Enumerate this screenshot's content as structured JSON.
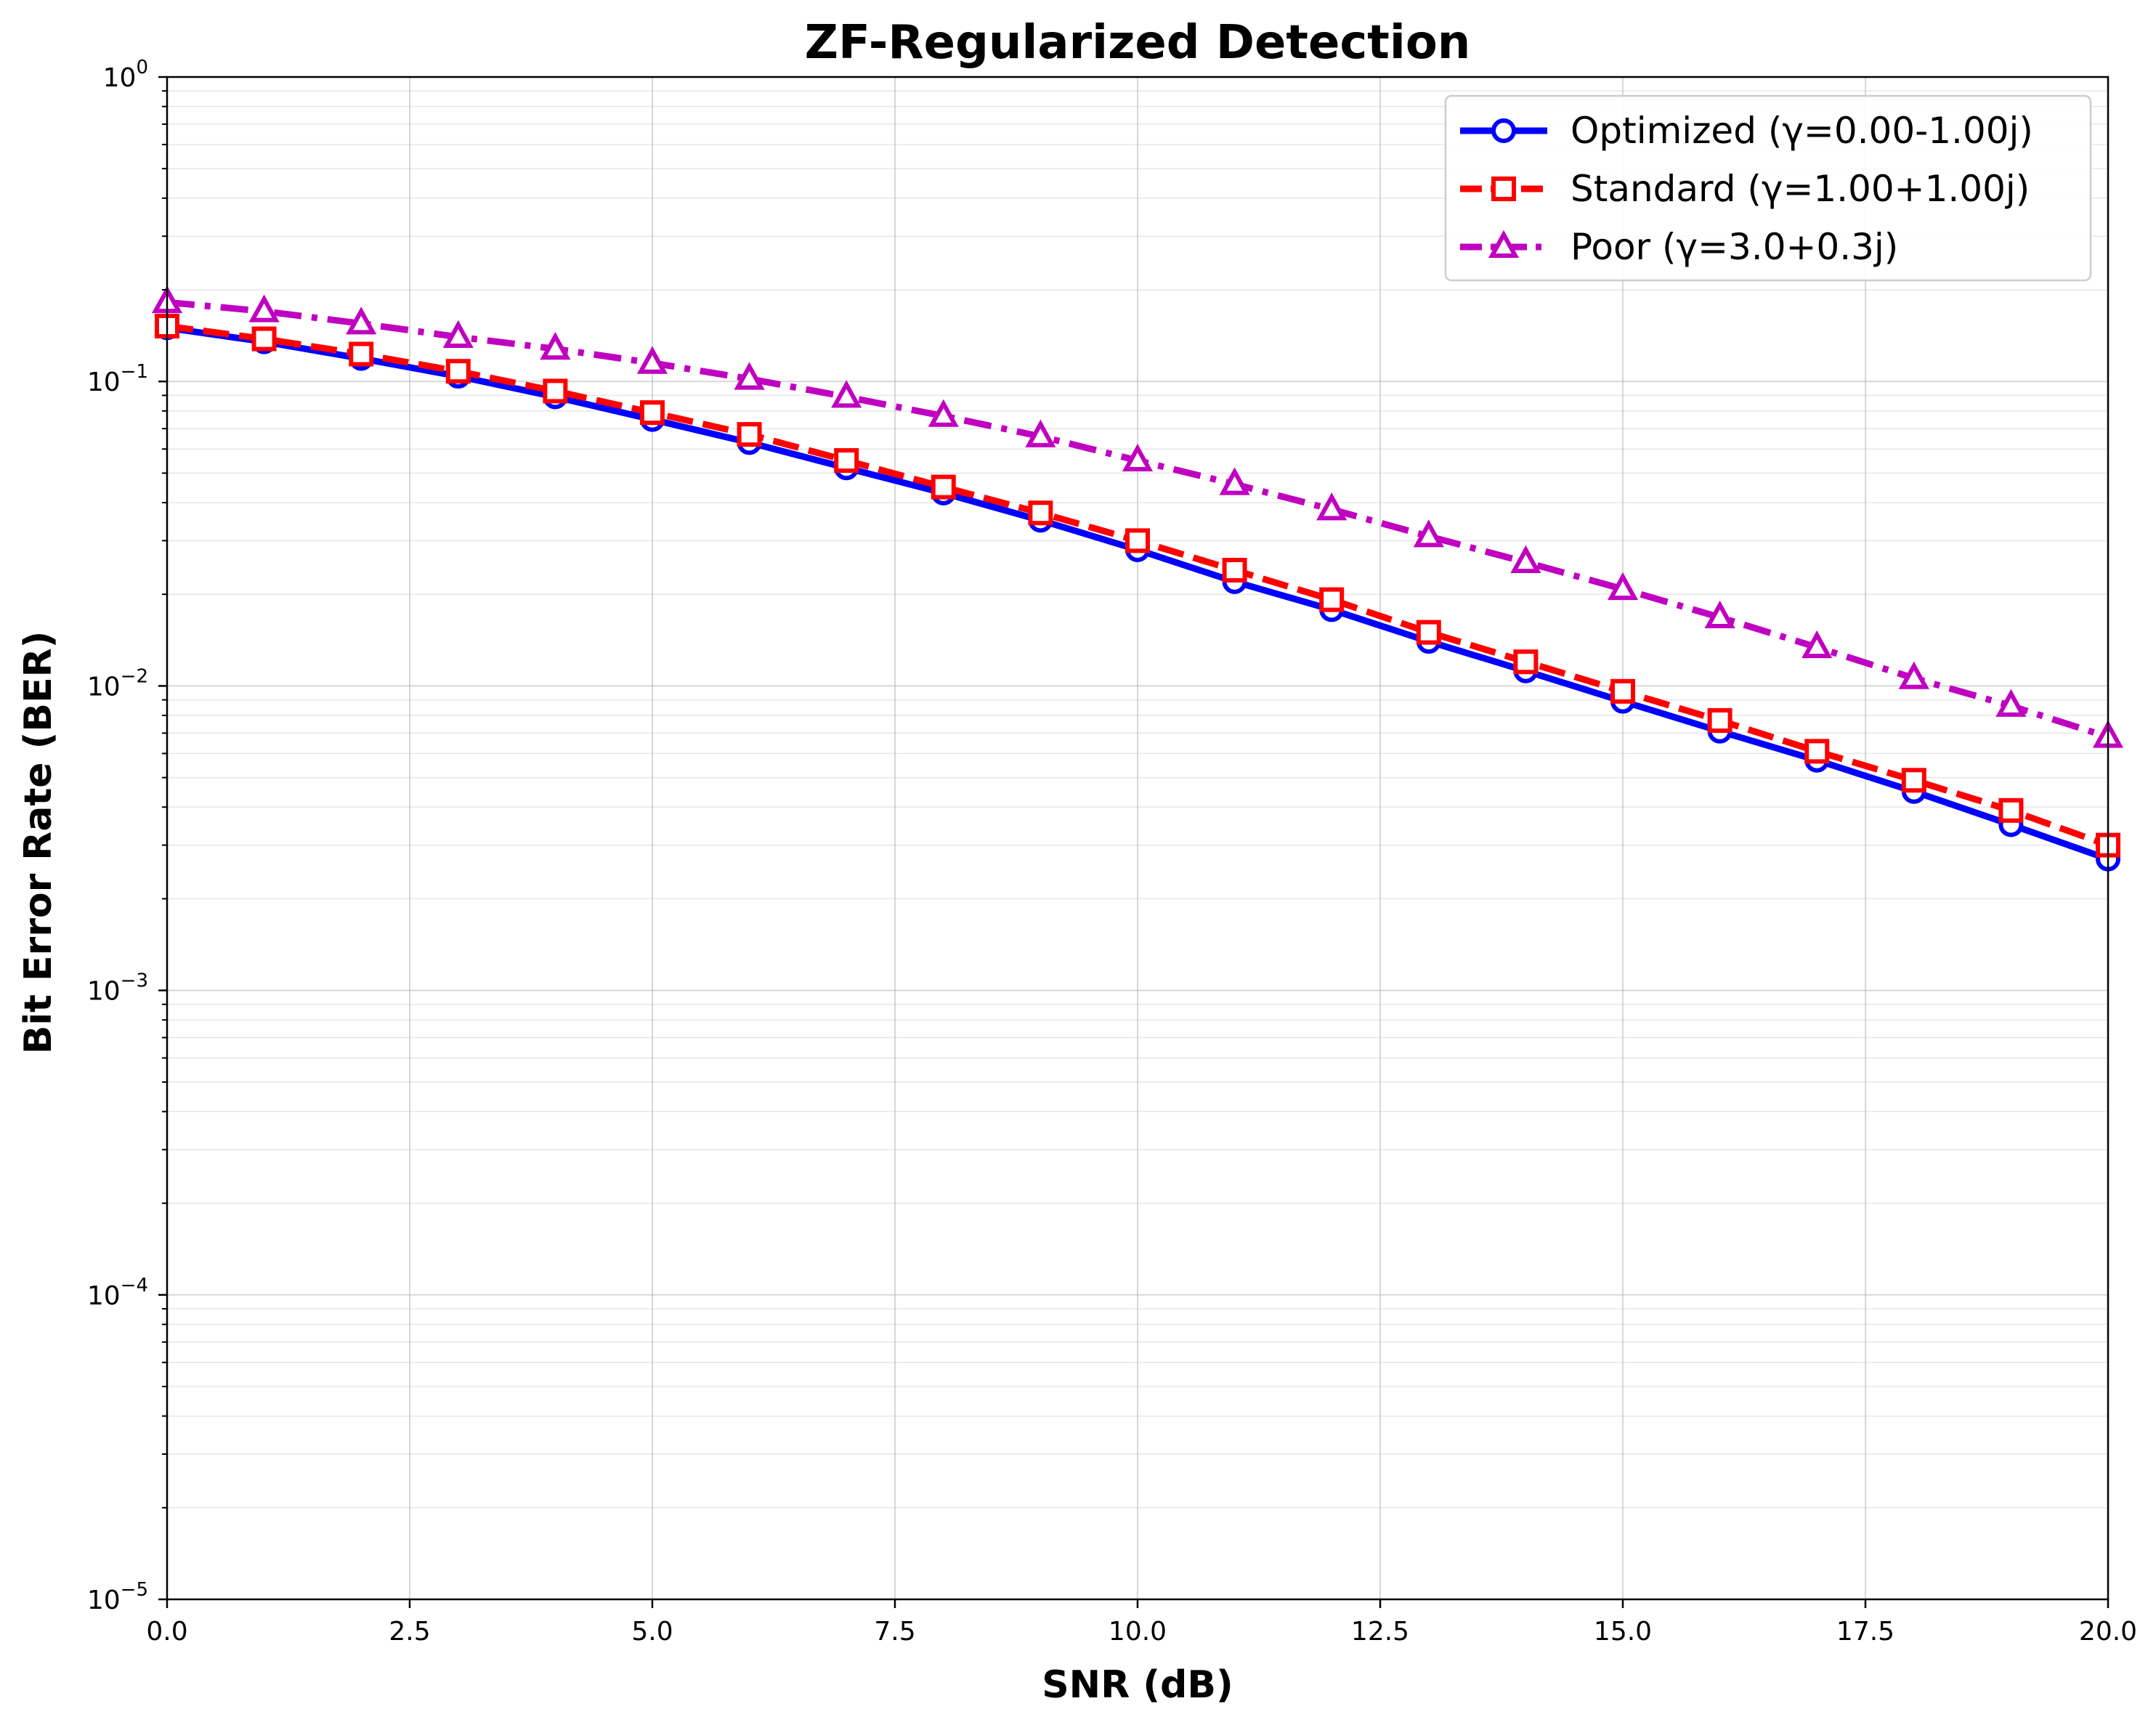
{
  "chart_data": {
    "type": "line",
    "title": "ZF-Regularized Detection",
    "xlabel": "SNR (dB)",
    "ylabel": "Bit Error Rate (BER)",
    "xlim": [
      0,
      20
    ],
    "ylim": [
      1e-05,
      1
    ],
    "yscale": "log",
    "grid": true,
    "legend_position": "upper-right",
    "x_ticks": [
      "0.0",
      "2.5",
      "5.0",
      "7.5",
      "10.0",
      "12.5",
      "15.0",
      "17.5",
      "20.0"
    ],
    "y_ticks": [
      {
        "base": "10",
        "exp": "0"
      },
      {
        "base": "10",
        "exp": "−1"
      },
      {
        "base": "10",
        "exp": "−2"
      },
      {
        "base": "10",
        "exp": "−3"
      },
      {
        "base": "10",
        "exp": "−4"
      },
      {
        "base": "10",
        "exp": "−5"
      }
    ],
    "x": [
      0,
      1,
      2,
      3,
      4,
      5,
      6,
      7,
      8,
      9,
      10,
      11,
      12,
      13,
      14,
      15,
      16,
      17,
      18,
      19,
      20
    ],
    "series": [
      {
        "name": "Optimized (γ=0.00-1.00j)",
        "color": "#0000ff",
        "marker": "circle",
        "linestyle": "solid",
        "values": [
          0.15,
          0.135,
          0.119,
          0.104,
          0.089,
          0.075,
          0.063,
          0.052,
          0.043,
          0.035,
          0.028,
          0.022,
          0.0178,
          0.014,
          0.0112,
          0.0089,
          0.0071,
          0.0057,
          0.0045,
          0.0035,
          0.0027
        ]
      },
      {
        "name": "Standard (γ=1.00+1.00j)",
        "color": "#ff0000",
        "marker": "square",
        "linestyle": "dashed",
        "values": [
          0.152,
          0.138,
          0.123,
          0.108,
          0.093,
          0.079,
          0.067,
          0.055,
          0.045,
          0.037,
          0.03,
          0.024,
          0.0192,
          0.015,
          0.012,
          0.0096,
          0.0077,
          0.0061,
          0.0049,
          0.0039,
          0.003
        ]
      },
      {
        "name": "Poor (γ=3.0+0.3j)",
        "color": "#c000c0",
        "marker": "triangle",
        "linestyle": "dashdot",
        "values": [
          0.182,
          0.17,
          0.155,
          0.14,
          0.128,
          0.115,
          0.102,
          0.089,
          0.077,
          0.066,
          0.055,
          0.046,
          0.038,
          0.031,
          0.0255,
          0.0208,
          0.0168,
          0.0134,
          0.0106,
          0.0086,
          0.0068
        ]
      }
    ]
  }
}
